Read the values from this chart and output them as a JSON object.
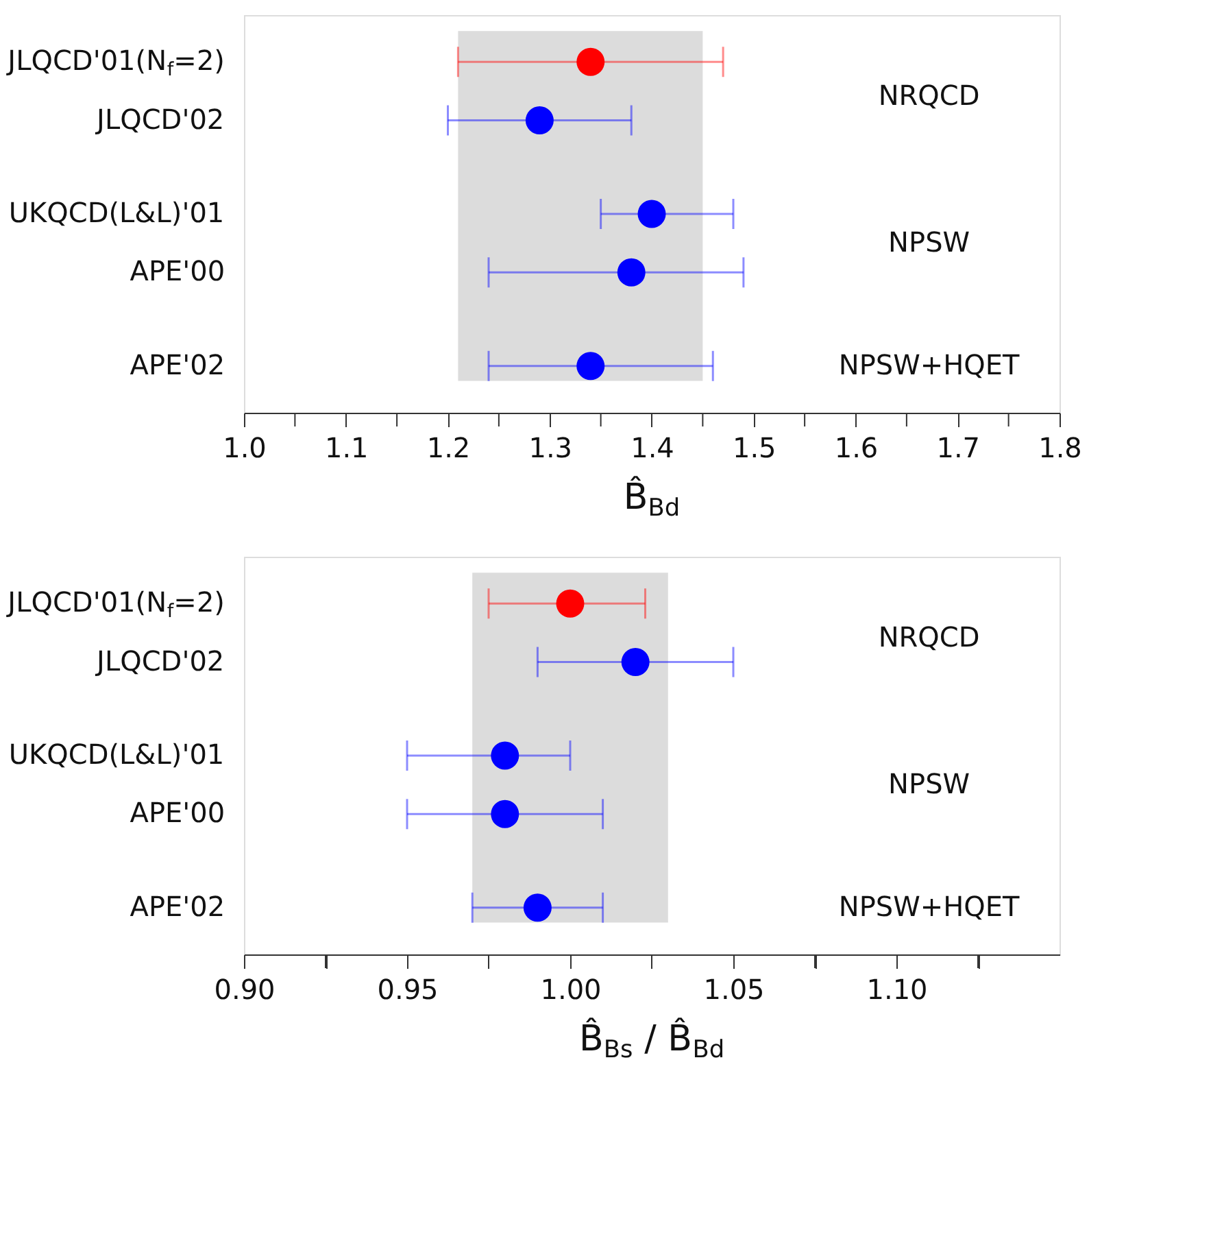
{
  "chart_data": [
    {
      "type": "scatter",
      "orientation": "horizontal",
      "xlabel": "B̂$_{Bd}$",
      "categories": [
        "JLQCD'01(N$_{f}$=2)",
        "JLQCD'02",
        "UKQCD(L&L)'01",
        "APE'00",
        "APE'02"
      ],
      "values": [
        1.34,
        1.29,
        1.4,
        1.38,
        1.34
      ],
      "colors": [
        "#ff0000",
        "#0000ff",
        "#0000ff",
        "#0000ff",
        "#0000ff"
      ],
      "errors": [
        [
          1.21,
          1.47
        ],
        [
          1.2,
          1.38
        ],
        [
          1.35,
          1.48
        ],
        [
          1.24,
          1.49
        ],
        [
          1.24,
          1.46
        ]
      ],
      "xlim": [
        1.0,
        1.8
      ],
      "xticks": [
        {
          "value": 1.0,
          "label": "1.0"
        },
        {
          "value": 1.05,
          "label": null
        },
        1.1,
        {
          "value": 1.15,
          "label": null
        },
        1.2,
        {
          "value": 1.25,
          "label": null
        },
        1.3,
        {
          "value": 1.35,
          "label": null
        },
        1.4,
        {
          "value": 1.45,
          "label": null
        },
        1.5,
        {
          "value": 1.55,
          "label": null
        },
        1.6,
        {
          "value": 1.65,
          "label": null
        },
        1.7,
        {
          "value": 1.75,
          "label": null
        },
        1.8
      ],
      "bands": [
        {
          "axis": "x",
          "from": 1.21,
          "to": 1.45,
          "color": "#dcdcdc"
        }
      ],
      "annotations": [
        "NRQCD",
        "NPSW",
        "NPSW+HQET"
      ],
      "marker": "circle",
      "grid": false,
      "legend": false
    },
    {
      "type": "scatter",
      "orientation": "horizontal",
      "xlabel": "B̂$_{Bs}$ / B̂$_{Bd}$",
      "categories": [
        "JLQCD'01(N$_{f}$=2)",
        "JLQCD'02",
        "UKQCD(L&L)'01",
        "APE'00",
        "APE'02"
      ],
      "values": [
        1.0,
        1.02,
        0.98,
        0.98,
        0.99
      ],
      "colors": [
        "#ff0000",
        "#0000ff",
        "#0000ff",
        "#0000ff",
        "#0000ff"
      ],
      "errors": [
        [
          0.975,
          1.023
        ],
        [
          0.99,
          1.05
        ],
        [
          0.95,
          1.0
        ],
        [
          0.95,
          1.01
        ],
        [
          0.97,
          1.01
        ]
      ],
      "xlim": [
        0.9,
        1.15
      ],
      "xticks": [
        {
          "value": 0.9,
          "label": "0.90"
        },
        {
          "value": 0.925,
          "label": null
        },
        0.95,
        {
          "value": 0.975,
          "label": null
        },
        {
          "value": 1.0,
          "label": "1.00"
        },
        {
          "value": 1.025,
          "label": null
        },
        1.05,
        {
          "value": 1.075,
          "label": null
        },
        {
          "value": 1.1,
          "label": "1.10"
        },
        {
          "value": 1.125,
          "label": null
        }
      ],
      "bands": [
        {
          "axis": "x",
          "from": 0.97,
          "to": 1.03,
          "color": "#dcdcdc"
        }
      ],
      "annotations": [
        "NRQCD",
        "NPSW",
        "NPSW+HQET"
      ],
      "marker": "circle",
      "grid": false,
      "legend": false
    }
  ]
}
